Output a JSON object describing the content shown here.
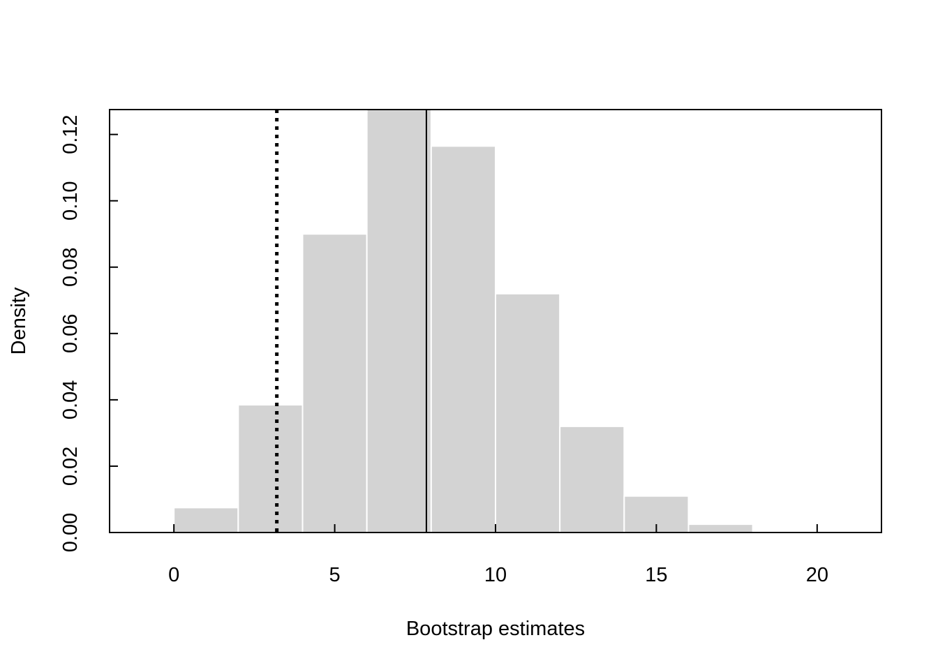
{
  "chart_data": {
    "type": "bar",
    "title": "",
    "xlabel": "Bootstrap estimates",
    "ylabel": "Density",
    "xlim": [
      -2,
      22
    ],
    "ylim": [
      0,
      0.1275
    ],
    "x_ticks": [
      0,
      5,
      10,
      15,
      20
    ],
    "x_tick_labels": [
      "0",
      "5",
      "10",
      "15",
      "20"
    ],
    "y_ticks": [
      0,
      0.02,
      0.04,
      0.06,
      0.08,
      0.1,
      0.12
    ],
    "y_tick_labels": [
      "0.00",
      "0.02",
      "0.04",
      "0.06",
      "0.08",
      "0.10",
      "0.12"
    ],
    "bins": [
      {
        "x0": 0,
        "x1": 2,
        "density": 0.0075
      },
      {
        "x0": 2,
        "x1": 4,
        "density": 0.0385
      },
      {
        "x0": 4,
        "x1": 6,
        "density": 0.09
      },
      {
        "x0": 6,
        "x1": 8,
        "density": 0.129
      },
      {
        "x0": 8,
        "x1": 10,
        "density": 0.1165
      },
      {
        "x0": 10,
        "x1": 12,
        "density": 0.072
      },
      {
        "x0": 12,
        "x1": 14,
        "density": 0.032
      },
      {
        "x0": 14,
        "x1": 16,
        "density": 0.011
      },
      {
        "x0": 16,
        "x1": 18,
        "density": 0.0025
      },
      {
        "x0": 18,
        "x1": 20,
        "density": 0.0
      },
      {
        "x0": 20,
        "x1": 22,
        "density": 0.0
      }
    ],
    "reference_lines": [
      {
        "name": "dotted-line",
        "x": 3.2,
        "style": "dotted"
      },
      {
        "name": "solid-line",
        "x": 7.85,
        "style": "solid"
      }
    ],
    "grid": false,
    "legend": "none",
    "colors": {
      "bar_fill": "#d3d3d3",
      "bar_border": "#ffffff",
      "line": "#000000"
    }
  }
}
